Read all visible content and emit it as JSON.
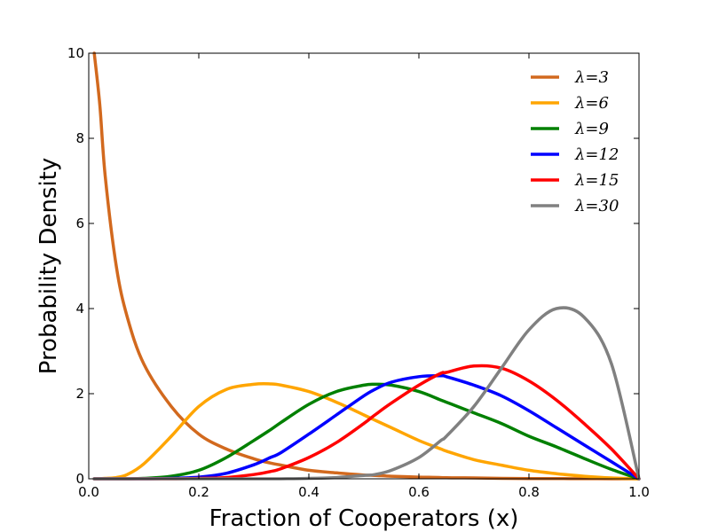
{
  "chart_data": {
    "type": "line",
    "xlabel": "Fraction of Cooperators (x)",
    "ylabel": "Probability Density",
    "xlim": [
      0.0,
      1.0
    ],
    "ylim": [
      0,
      10
    ],
    "xticks": [
      "0.0",
      "0.2",
      "0.4",
      "0.6",
      "0.8",
      "1.0"
    ],
    "yticks": [
      "0",
      "2",
      "4",
      "6",
      "8",
      "10"
    ],
    "legend_placement": "top-right",
    "grid": false,
    "x": [
      0.01,
      0.02,
      0.03,
      0.05,
      0.07,
      0.1,
      0.15,
      0.2,
      0.25,
      0.3,
      0.33,
      0.35,
      0.4,
      0.45,
      0.5,
      0.52,
      0.55,
      0.6,
      0.64,
      0.65,
      0.7,
      0.75,
      0.8,
      0.85,
      0.9,
      0.95,
      1.0
    ],
    "series": [
      {
        "name": "λ=3",
        "color": "#d2691e",
        "values": [
          10.0,
          8.8,
          7.1,
          5.0,
          3.8,
          2.7,
          1.7,
          1.05,
          0.7,
          0.47,
          0.37,
          0.32,
          0.2,
          0.14,
          0.09,
          0.08,
          0.06,
          0.04,
          0.03,
          0.025,
          0.02,
          0.01,
          0.007,
          0.005,
          0.003,
          0.001,
          0.0
        ]
      },
      {
        "name": "λ=6",
        "color": "#ffa500",
        "values": [
          0.0,
          0.0,
          0.01,
          0.03,
          0.1,
          0.35,
          1.0,
          1.7,
          2.1,
          2.22,
          2.23,
          2.2,
          2.05,
          1.8,
          1.5,
          1.38,
          1.2,
          0.9,
          0.7,
          0.65,
          0.45,
          0.32,
          0.2,
          0.12,
          0.06,
          0.02,
          0.0
        ]
      },
      {
        "name": "λ=9",
        "color": "#008000",
        "values": [
          0.0,
          0.0,
          0.0,
          0.0,
          0.0,
          0.01,
          0.06,
          0.2,
          0.5,
          0.9,
          1.15,
          1.33,
          1.75,
          2.05,
          2.2,
          2.22,
          2.2,
          2.05,
          1.85,
          1.8,
          1.55,
          1.3,
          1.0,
          0.75,
          0.48,
          0.22,
          0.0
        ]
      },
      {
        "name": "λ=12",
        "color": "#0000ff",
        "values": [
          0.0,
          0.0,
          0.0,
          0.0,
          0.0,
          0.0,
          0.01,
          0.04,
          0.13,
          0.33,
          0.5,
          0.62,
          1.05,
          1.5,
          1.95,
          2.1,
          2.27,
          2.4,
          2.42,
          2.4,
          2.2,
          1.95,
          1.6,
          1.2,
          0.8,
          0.4,
          0.0
        ]
      },
      {
        "name": "λ=15",
        "color": "#ff0000",
        "values": [
          0.0,
          0.0,
          0.0,
          0.0,
          0.0,
          0.0,
          0.0,
          0.01,
          0.03,
          0.1,
          0.17,
          0.24,
          0.5,
          0.85,
          1.3,
          1.5,
          1.78,
          2.2,
          2.48,
          2.5,
          2.65,
          2.6,
          2.3,
          1.85,
          1.3,
          0.7,
          0.0
        ]
      },
      {
        "name": "λ=30",
        "color": "#808080",
        "values": [
          0.0,
          0.0,
          0.0,
          0.0,
          0.0,
          0.0,
          0.0,
          0.0,
          0.0,
          0.0,
          0.0,
          0.0,
          0.01,
          0.03,
          0.08,
          0.1,
          0.2,
          0.5,
          0.9,
          1.0,
          1.7,
          2.6,
          3.5,
          4.0,
          3.8,
          2.7,
          0.0
        ]
      }
    ]
  }
}
